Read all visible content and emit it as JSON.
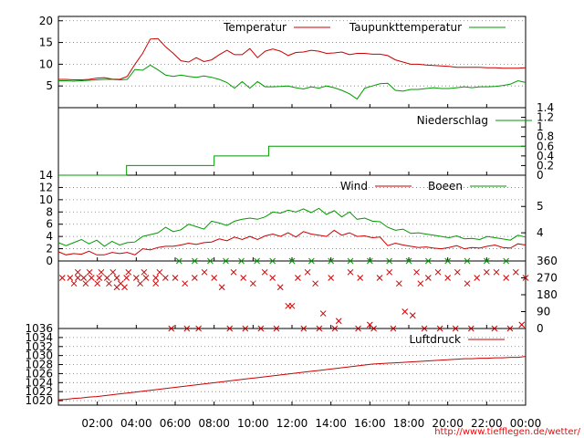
{
  "source_url": "http://www.tiefflegen.de/wetter/",
  "chart_data": [
    {
      "type": "line",
      "series": [
        {
          "name": "Temperatur",
          "color": "#cc0000",
          "values": [
            6.5,
            6.5,
            6.4,
            6.4,
            6.5,
            6.8,
            6.9,
            6.6,
            6.5,
            7.2,
            10.0,
            12.5,
            15.8,
            15.9,
            14.0,
            12.5,
            10.8,
            10.5,
            11.5,
            10.6,
            11.0,
            12.2,
            13.2,
            12.2,
            12.2,
            13.6,
            11.5,
            13.0,
            13.5,
            13.0,
            12.0,
            12.7,
            12.8,
            13.2,
            13.0,
            12.5,
            12.6,
            12.8,
            12.2,
            12.5,
            12.5,
            12.3,
            12.3,
            12.0,
            11.0,
            10.5,
            10.0,
            10.0,
            9.8,
            9.7,
            9.6,
            9.5,
            9.3,
            9.3,
            9.3,
            9.3,
            9.2,
            9.2,
            9.1,
            9.1,
            9.1,
            9.2
          ]
        },
        {
          "name": "Taupunkttemperatur",
          "color": "#009900",
          "values": [
            6.2,
            6.2,
            6.1,
            6.2,
            6.3,
            6.4,
            6.5,
            6.5,
            6.4,
            6.5,
            8.8,
            8.6,
            9.8,
            8.7,
            7.5,
            7.2,
            7.5,
            7.2,
            7.0,
            7.3,
            7.0,
            6.5,
            5.8,
            4.5,
            6.0,
            4.5,
            6.0,
            4.8,
            4.8,
            4.9,
            5.0,
            4.6,
            4.3,
            4.8,
            4.5,
            5.0,
            4.6,
            4.0,
            3.2,
            2.0,
            4.5,
            5.0,
            5.5,
            5.6,
            4.0,
            3.8,
            4.2,
            4.2,
            4.4,
            4.6,
            4.4,
            4.4,
            4.6,
            4.8,
            4.6,
            4.8,
            4.8,
            4.9,
            5.1,
            5.4,
            6.2,
            5.8
          ]
        }
      ],
      "ylim": [
        0,
        21
      ],
      "yticks": [
        "5",
        "10",
        "15",
        "20"
      ]
    },
    {
      "type": "line",
      "series": [
        {
          "name": "Niederschlag",
          "color": "#009900",
          "steps": [
            {
              "t": 0,
              "v": 0
            },
            {
              "t": 3.5,
              "v": 0.2
            },
            {
              "t": 8.0,
              "v": 0.4
            },
            {
              "t": 10.8,
              "v": 0.6
            },
            {
              "t": 24.0,
              "v": 0.6
            }
          ]
        }
      ],
      "ylim": [
        0,
        1.4
      ],
      "yticks_right": [
        "0",
        "0.2",
        "0.4",
        "0.6",
        "0.8",
        "1",
        "1.2",
        "1.4"
      ]
    },
    {
      "type": "line",
      "series": [
        {
          "name": "Wind",
          "color": "#cc0000",
          "values": [
            1.5,
            1.0,
            1.2,
            1.1,
            1.6,
            1.0,
            1.0,
            1.4,
            1.2,
            1.4,
            1.0,
            2.0,
            1.8,
            2.2,
            2.4,
            2.4,
            2.6,
            2.9,
            2.7,
            3.0,
            3.1,
            3.6,
            3.3,
            3.9,
            3.5,
            4.0,
            3.5,
            4.1,
            4.4,
            4.0,
            4.6,
            3.9,
            4.8,
            4.4,
            4.2,
            4.0,
            5.0,
            4.2,
            4.6,
            4.0,
            4.1,
            3.8,
            3.9,
            2.5,
            2.9,
            2.6,
            2.4,
            2.2,
            2.3,
            2.1,
            2.0,
            2.2,
            2.5,
            2.0,
            2.2,
            2.1,
            2.4,
            2.6,
            2.2,
            2.1,
            2.8,
            2.6
          ]
        },
        {
          "name": "Boeen",
          "color": "#009900",
          "values": [
            3.0,
            2.5,
            3.0,
            3.5,
            2.8,
            3.4,
            2.4,
            3.2,
            2.6,
            3.0,
            3.1,
            4.0,
            4.3,
            4.6,
            5.5,
            4.8,
            5.1,
            6.0,
            5.6,
            5.2,
            6.5,
            6.2,
            5.8,
            6.5,
            6.8,
            7.0,
            6.8,
            7.2,
            8.0,
            7.8,
            8.3,
            8.0,
            8.5,
            7.9,
            8.6,
            7.6,
            8.2,
            7.2,
            8.0,
            6.8,
            7.0,
            6.5,
            6.4,
            5.5,
            5.0,
            5.2,
            4.5,
            4.6,
            4.4,
            4.2,
            4.0,
            3.8,
            4.1,
            3.6,
            3.7,
            3.5,
            4.0,
            3.8,
            3.6,
            3.4,
            4.2,
            3.9
          ]
        }
      ],
      "ylim": [
        0,
        14
      ],
      "yticks": [
        "0",
        "2",
        "4",
        "6",
        "8",
        "10",
        "12",
        "14"
      ],
      "yticks_right": [
        "4",
        "5"
      ]
    },
    {
      "type": "scatter",
      "series": [
        {
          "color": "#cc0000",
          "marker": "x",
          "points": [
            [
              0.2,
              270
            ],
            [
              0.6,
              270
            ],
            [
              1.0,
              270
            ],
            [
              1.3,
              270
            ],
            [
              1.7,
              270
            ],
            [
              2.1,
              270
            ],
            [
              2.5,
              270
            ],
            [
              3.0,
              270
            ],
            [
              3.5,
              270
            ],
            [
              4.0,
              270
            ],
            [
              4.5,
              270
            ],
            [
              5.0,
              270
            ],
            [
              5.5,
              270
            ],
            [
              1.0,
              300
            ],
            [
              1.6,
              300
            ],
            [
              2.2,
              300
            ],
            [
              2.8,
              300
            ],
            [
              3.6,
              300
            ],
            [
              4.4,
              300
            ],
            [
              5.2,
              300
            ],
            [
              0.8,
              240
            ],
            [
              1.4,
              240
            ],
            [
              2.0,
              240
            ],
            [
              2.6,
              240
            ],
            [
              3.2,
              240
            ],
            [
              4.2,
              240
            ],
            [
              5.0,
              240
            ],
            [
              3.0,
              220
            ],
            [
              3.4,
              220
            ],
            [
              6.0,
              270
            ],
            [
              6.5,
              240
            ],
            [
              7.0,
              270
            ],
            [
              7.5,
              300
            ],
            [
              8.0,
              270
            ],
            [
              8.4,
              220
            ],
            [
              9.0,
              300
            ],
            [
              9.5,
              270
            ],
            [
              10.0,
              240
            ],
            [
              10.6,
              300
            ],
            [
              11.0,
              270
            ],
            [
              11.4,
              220
            ],
            [
              11.8,
              120
            ],
            [
              12.0,
              120
            ],
            [
              12.3,
              270
            ],
            [
              12.8,
              300
            ],
            [
              13.2,
              240
            ],
            [
              13.6,
              80
            ],
            [
              14.0,
              270
            ],
            [
              14.4,
              40
            ],
            [
              15.0,
              300
            ],
            [
              15.5,
              270
            ],
            [
              16.0,
              20
            ],
            [
              16.5,
              270
            ],
            [
              17.0,
              300
            ],
            [
              17.5,
              240
            ],
            [
              17.8,
              90
            ],
            [
              18.2,
              70
            ],
            [
              18.4,
              300
            ],
            [
              18.6,
              240
            ],
            [
              19.0,
              270
            ],
            [
              19.5,
              300
            ],
            [
              20.0,
              270
            ],
            [
              20.5,
              300
            ],
            [
              21.0,
              240
            ],
            [
              21.5,
              270
            ],
            [
              22.0,
              300
            ],
            [
              22.5,
              300
            ],
            [
              23.0,
              270
            ],
            [
              23.5,
              300
            ],
            [
              23.8,
              20
            ],
            [
              24.0,
              270
            ]
          ]
        },
        {
          "color": "#009900",
          "marker": "x",
          "points": [
            [
              6.2,
              360
            ],
            [
              7.0,
              360
            ],
            [
              7.8,
              360
            ],
            [
              8.6,
              360
            ],
            [
              9.4,
              360
            ],
            [
              10.2,
              360
            ],
            [
              11.0,
              360
            ],
            [
              12.0,
              360
            ],
            [
              13.0,
              360
            ],
            [
              14.0,
              360
            ],
            [
              15.0,
              360
            ],
            [
              16.0,
              360
            ],
            [
              17.0,
              360
            ],
            [
              18.0,
              360
            ],
            [
              19.0,
              360
            ],
            [
              20.0,
              360
            ],
            [
              21.0,
              360
            ],
            [
              22.0,
              360
            ],
            [
              23.0,
              360
            ]
          ]
        },
        {
          "color": "#cc0000",
          "marker": "x",
          "points": [
            [
              5.8,
              0
            ],
            [
              6.6,
              0
            ],
            [
              7.2,
              0
            ],
            [
              8.8,
              0
            ],
            [
              9.6,
              0
            ],
            [
              10.4,
              0
            ],
            [
              11.2,
              0
            ],
            [
              12.6,
              0
            ],
            [
              13.4,
              0
            ],
            [
              14.2,
              0
            ],
            [
              15.4,
              0
            ],
            [
              16.2,
              0
            ],
            [
              17.2,
              0
            ],
            [
              18.8,
              0
            ],
            [
              19.6,
              0
            ],
            [
              20.4,
              0
            ],
            [
              21.2,
              0
            ],
            [
              22.4,
              0
            ],
            [
              23.2,
              0
            ]
          ]
        }
      ],
      "ylim": [
        0,
        360
      ],
      "yticks_right": [
        "0",
        "90",
        "180",
        "270",
        "360"
      ]
    },
    {
      "type": "line",
      "series": [
        {
          "name": "Luftdruck",
          "color": "#cc0000",
          "values": [
            1020.2,
            1020.3,
            1020.5,
            1020.6,
            1020.8,
            1020.9,
            1021.1,
            1021.3,
            1021.5,
            1021.7,
            1021.9,
            1022.1,
            1022.3,
            1022.5,
            1022.7,
            1022.9,
            1023.1,
            1023.3,
            1023.5,
            1023.7,
            1023.9,
            1024.1,
            1024.3,
            1024.5,
            1024.7,
            1024.9,
            1025.1,
            1025.3,
            1025.5,
            1025.7,
            1025.9,
            1026.1,
            1026.3,
            1026.5,
            1026.7,
            1026.9,
            1027.1,
            1027.3,
            1027.5,
            1027.7,
            1027.9,
            1028.1,
            1028.2,
            1028.3,
            1028.4,
            1028.5,
            1028.6,
            1028.7,
            1028.8,
            1028.9,
            1029.0,
            1029.1,
            1029.2,
            1029.3,
            1029.3,
            1029.4,
            1029.4,
            1029.5,
            1029.5,
            1029.6,
            1029.6,
            1029.8
          ]
        }
      ],
      "ylim": [
        1019,
        1036
      ],
      "yticks": [
        "1020",
        "1022",
        "1024",
        "1026",
        "1028",
        "1030",
        "1032",
        "1034",
        "1036"
      ]
    }
  ],
  "xaxis": {
    "range_hours": [
      0,
      24
    ],
    "ticks": [
      "02:00",
      "04:00",
      "06:00",
      "08:00",
      "10:00",
      "12:00",
      "14:00",
      "16:00",
      "18:00",
      "20:00",
      "22:00",
      "00:00"
    ]
  }
}
